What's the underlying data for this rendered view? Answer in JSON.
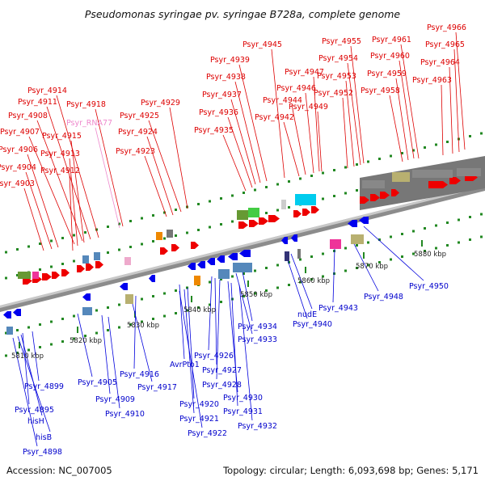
{
  "title": "Pseudomonas syringae pv. syringae B728a, complete genome",
  "accession": "Accession: NC_007005",
  "topology": "Topology: circular; Length: 6,093,698 bp; Genes: 5,171",
  "colors": {
    "forward_gene": "#ee0000",
    "reverse_gene": "#0000ee",
    "rna_gene": "#ee88cc",
    "backbone": "#888888",
    "tick": "#228822"
  },
  "kbp_ticks": [
    "5810 kbp",
    "5820 kbp",
    "5830 kbp",
    "5840 kbp",
    "5850 kbp",
    "5860 kbp",
    "5870 kbp",
    "5880 kbp"
  ],
  "top_labels": [
    "Psyr_4966",
    "Psyr_4965",
    "Psyr_4964",
    "Psyr_4963",
    "Psyr_4961",
    "Psyr_4960",
    "Psyr_4959",
    "Psyr_4958",
    "Psyr_4955",
    "Psyr_4954",
    "Psyr_4953",
    "Psyr_4952",
    "Psyr_4949",
    "Psyr_4947",
    "Psyr_4946",
    "Psyr_4944",
    "Psyr_4942",
    "Psyr_4945",
    "Psyr_4939",
    "Psyr_4938",
    "Psyr_4937",
    "Psyr_4936",
    "Psyr_4935",
    "Psyr_4929",
    "Psyr_4925",
    "Psyr_4924",
    "Psyr_4923",
    "Psyr_4918",
    "Psyr_RNA77",
    "Psyr_4914",
    "Psyr_4911",
    "Psyr_4908",
    "Psyr_4915",
    "Psyr_4907",
    "Psyr_4913",
    "Psyr_4906",
    "Psyr_4904",
    "Psyr_4912",
    "Psyr_4903"
  ],
  "bottom_labels": [
    "Psyr_4950",
    "Psyr_4948",
    "Psyr_4943",
    "nudE",
    "Psyr_4940",
    "Psyr_4934",
    "Psyr_4933",
    "Psyr_4926",
    "Psyr_4927",
    "Psyr_4928",
    "Psyr_4930",
    "Psyr_4931",
    "Psyr_4932",
    "AvrPto1",
    "Psyr_4920",
    "Psyr_4921",
    "Psyr_4922",
    "Psyr_4916",
    "Psyr_4917",
    "Psyr_4905",
    "Psyr_4909",
    "Psyr_4910",
    "Psyr_4899",
    "Psyr_4895",
    "hisH",
    "hisB",
    "Psyr_4898"
  ]
}
